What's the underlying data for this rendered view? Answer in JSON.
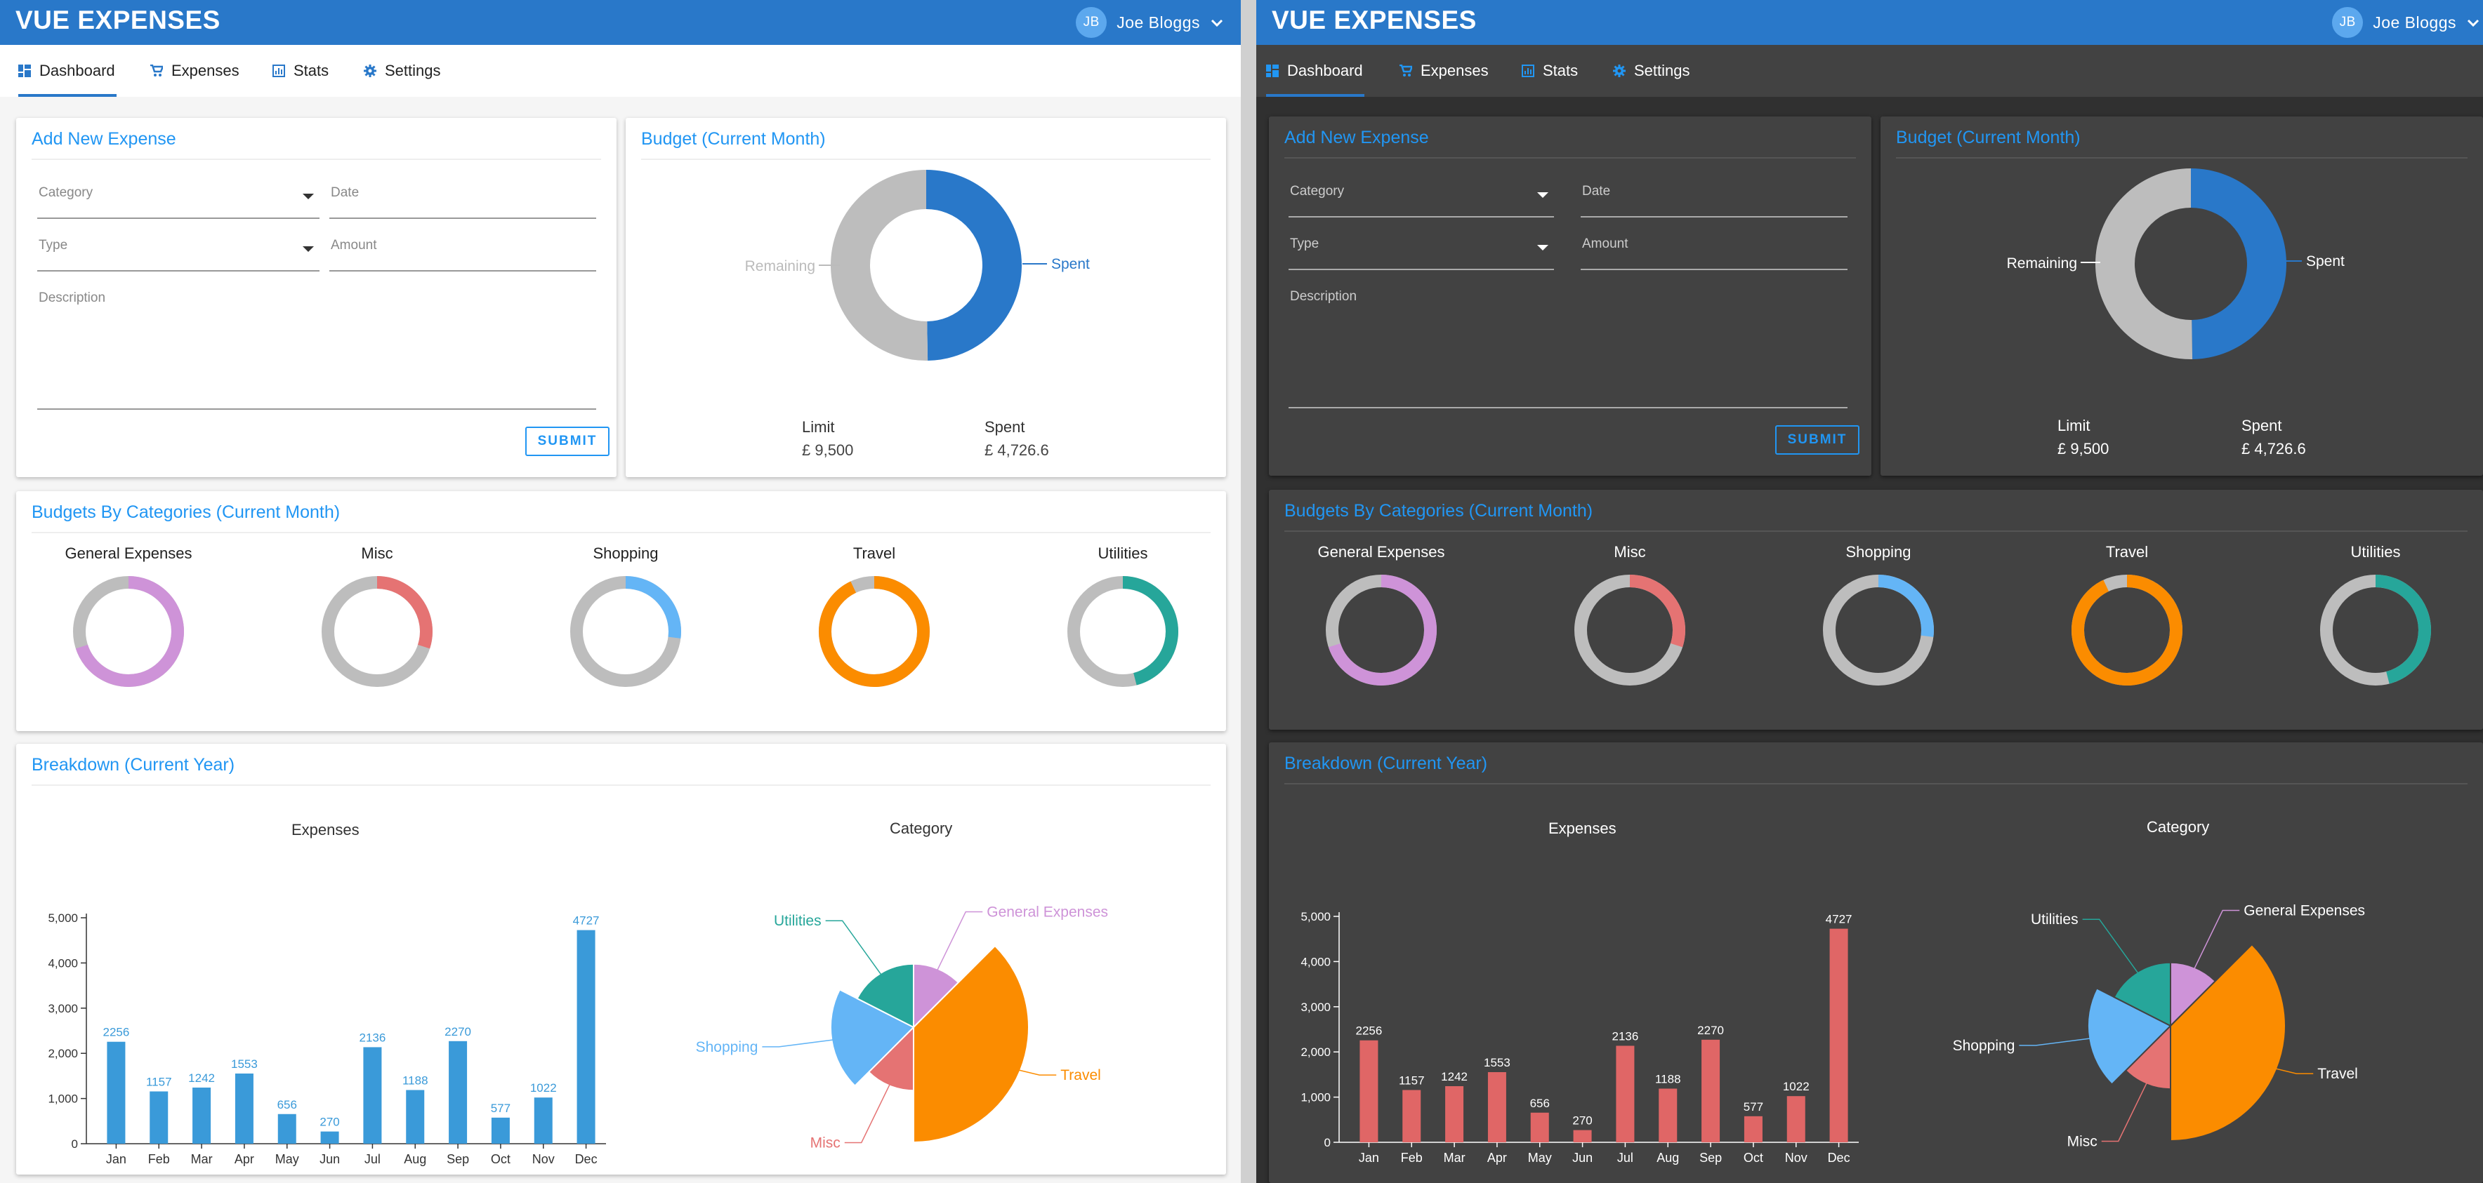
{
  "app": {
    "title": "VUE EXPENSES"
  },
  "user": {
    "initials": "JB",
    "name": "Joe Bloggs"
  },
  "nav": {
    "tabs": [
      {
        "label": "Dashboard",
        "icon": "dashboard-icon",
        "active": true
      },
      {
        "label": "Expenses",
        "icon": "cart-icon",
        "active": false
      },
      {
        "label": "Stats",
        "icon": "stats-icon",
        "active": false
      },
      {
        "label": "Settings",
        "icon": "gear-icon",
        "active": false
      }
    ]
  },
  "add_expense": {
    "title": "Add New Expense",
    "category_label": "Category",
    "date_label": "Date",
    "type_label": "Type",
    "amount_label": "Amount",
    "description_label": "Description",
    "submit_label": "SUBMIT"
  },
  "budget": {
    "title": "Budget (Current Month)",
    "remaining_label": "Remaining",
    "spent_label": "Spent",
    "limit_label": "Limit",
    "limit_value": "£ 9,500",
    "spent_stat_label": "Spent",
    "spent_value": "£ 4,726.6",
    "limit_amount": 9500,
    "spent_amount": 4726.6
  },
  "categories": {
    "title": "Budgets By Categories (Current Month)",
    "items": [
      {
        "name": "General Expenses",
        "fraction": 0.7,
        "color": "#ce93d8"
      },
      {
        "name": "Misc",
        "fraction": 0.3,
        "color": "#e57373"
      },
      {
        "name": "Shopping",
        "fraction": 0.27,
        "color": "#64b5f6"
      },
      {
        "name": "Travel",
        "fraction": 0.93,
        "color": "#fb8c00"
      },
      {
        "name": "Utilities",
        "fraction": 0.46,
        "color": "#26a69a"
      }
    ]
  },
  "breakdown": {
    "title": "Breakdown (Current Year)",
    "expenses_title": "Expenses",
    "category_title": "Category"
  },
  "colors": {
    "primary": "#2978c9",
    "accent": "#2196f3",
    "remaining_gray": "#bdbdbd",
    "bar_light": "#3a9ad9",
    "bar_dark": "#e06666"
  },
  "chart_data": [
    {
      "type": "bar",
      "title": "Expenses",
      "categories": [
        "Jan",
        "Feb",
        "Mar",
        "Apr",
        "May",
        "Jun",
        "Jul",
        "Aug",
        "Sep",
        "Oct",
        "Nov",
        "Dec"
      ],
      "values": [
        2256,
        1157,
        1242,
        1553,
        656,
        270,
        2136,
        1188,
        2270,
        577,
        1022,
        4727
      ],
      "y_ticks": [
        "0",
        "1,000",
        "2,000",
        "3,000",
        "4,000",
        "5,000"
      ],
      "ylim": [
        0,
        5000
      ],
      "xlabel": "",
      "ylabel": ""
    },
    {
      "type": "pie",
      "title": "Category",
      "subtype": "polar-area",
      "series": [
        {
          "name": "General Expenses",
          "angle_fraction": 0.125,
          "radius_fraction": 0.55,
          "color": "#ce93d8"
        },
        {
          "name": "Travel",
          "angle_fraction": 0.375,
          "radius_fraction": 1.0,
          "color": "#fb8c00"
        },
        {
          "name": "Misc",
          "angle_fraction": 0.125,
          "radius_fraction": 0.55,
          "color": "#e57373"
        },
        {
          "name": "Shopping",
          "angle_fraction": 0.2,
          "radius_fraction": 0.72,
          "color": "#64b5f6"
        },
        {
          "name": "Utilities",
          "angle_fraction": 0.175,
          "radius_fraction": 0.55,
          "color": "#26a69a"
        }
      ]
    },
    {
      "type": "pie",
      "title": "Budget (Current Month)",
      "subtype": "donut",
      "series": [
        {
          "name": "Spent",
          "value": 4726.6,
          "color": "#2978c9"
        },
        {
          "name": "Remaining",
          "value": 4773.4,
          "color": "#bdbdbd"
        }
      ]
    }
  ]
}
